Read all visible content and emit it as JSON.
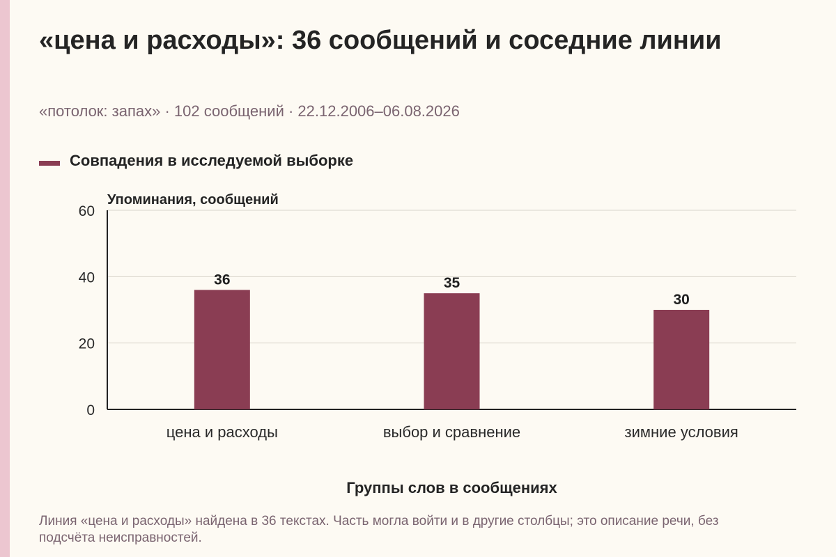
{
  "chart_data": {
    "type": "bar",
    "title": "«цена и расходы»: 36 сообщений и соседние линии",
    "subtitle": "«потолок: запах» · 102 сообщений · 22.12.2006–06.08.2026",
    "ylabel": "Упоминания, сообщений",
    "xlabel": "Группы слов в сообщениях",
    "ylim": [
      0,
      60
    ],
    "yticks": [
      "0",
      "20",
      "40",
      "60"
    ],
    "grid": true,
    "legend_position": "top-left",
    "categories": [
      "цена и расходы",
      "выбор и сравнение",
      "зимние условия"
    ],
    "series": [
      {
        "name": "Совпадения в исследуемой выборке",
        "values": [
          36,
          35,
          30
        ],
        "color": "#8a3d53"
      }
    ],
    "note": "Линия «цена и расходы» найдена в 36 текстах. Часть могла войти и в другие столбцы; это описание речи, без подсчёта неисправностей."
  },
  "colors": {
    "background": "#fdfaf3",
    "accent_strip": "#ecc6d0",
    "bar": "#8a3d53",
    "grid": "#d8d4cb",
    "axis": "#222222",
    "muted_text": "#7a6470"
  }
}
